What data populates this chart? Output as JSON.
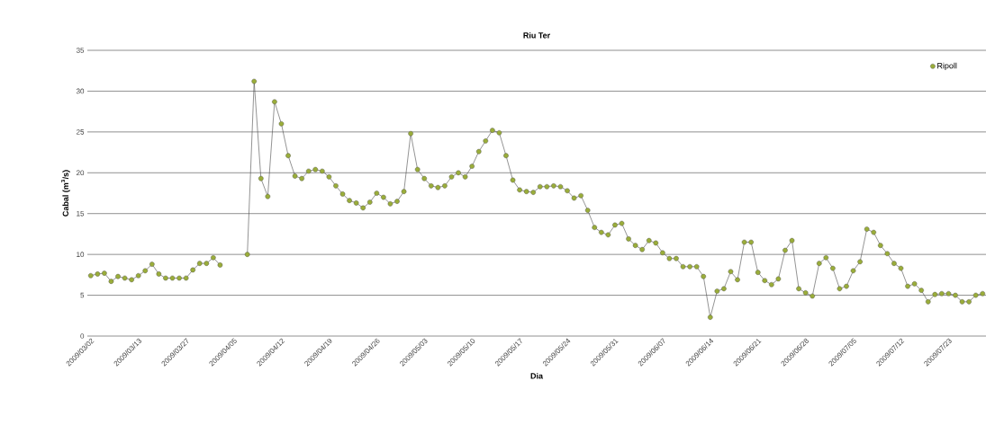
{
  "chart_data": {
    "type": "line",
    "title": "Riu Ter",
    "xlabel": "Dia",
    "ylabel": "Cabal (m$^{3}$/s)",
    "categories": [
      "2009/03/02",
      null,
      null,
      null,
      null,
      null,
      null,
      "2009/03/13",
      null,
      null,
      null,
      null,
      null,
      null,
      "2009/03/27",
      null,
      null,
      null,
      null,
      null,
      null,
      "2009/04/05",
      null,
      null,
      null,
      null,
      null,
      null,
      "2009/04/12",
      null,
      null,
      null,
      null,
      null,
      null,
      "2009/04/19",
      null,
      null,
      null,
      null,
      null,
      null,
      "2009/04/26",
      null,
      null,
      null,
      null,
      null,
      null,
      "2009/05/03",
      null,
      null,
      null,
      null,
      null,
      null,
      "2009/05/10",
      null,
      null,
      null,
      null,
      null,
      null,
      "2009/05/17",
      null,
      null,
      null,
      null,
      null,
      null,
      "2009/05/24",
      null,
      null,
      null,
      null,
      null,
      null,
      "2009/05/31",
      null,
      null,
      null,
      null,
      null,
      null,
      "2009/06/07",
      null,
      null,
      null,
      null,
      null,
      null,
      "2009/06/14",
      null,
      null,
      null,
      null,
      null,
      null,
      "2009/06/21",
      null,
      null,
      null,
      null,
      null,
      null,
      "2009/06/28",
      null,
      null,
      null,
      null,
      null,
      null,
      "2009/07/05",
      null,
      null,
      null,
      null,
      null,
      null,
      "2009/07/12",
      null,
      null,
      null,
      null,
      null,
      null,
      "2009/07/23",
      null,
      null,
      null,
      null,
      null
    ],
    "series": [
      {
        "name": "Ripoll",
        "color": "#9aad3a",
        "values": [
          7.4,
          7.6,
          7.7,
          6.7,
          7.3,
          7.1,
          6.9,
          7.4,
          8.0,
          8.8,
          7.6,
          7.1,
          7.1,
          7.1,
          7.1,
          8.1,
          8.9,
          8.9,
          9.6,
          8.7,
          null,
          null,
          null,
          10.0,
          31.2,
          19.3,
          17.1,
          28.7,
          26.0,
          22.1,
          19.6,
          19.3,
          20.2,
          20.4,
          20.2,
          19.5,
          18.4,
          17.4,
          16.6,
          16.3,
          15.7,
          16.4,
          17.5,
          17.0,
          16.2,
          16.5,
          17.7,
          24.8,
          20.4,
          19.3,
          18.4,
          18.2,
          18.4,
          19.5,
          20.0,
          19.5,
          20.8,
          22.6,
          23.9,
          25.2,
          24.9,
          22.1,
          19.1,
          17.9,
          17.7,
          17.6,
          18.3,
          18.3,
          18.4,
          18.3,
          17.8,
          16.9,
          17.2,
          15.4,
          13.3,
          12.7,
          12.4,
          13.6,
          13.8,
          11.9,
          11.1,
          10.6,
          11.7,
          11.4,
          10.2,
          9.5,
          9.5,
          8.5,
          8.5,
          8.5,
          7.3,
          2.3,
          5.5,
          5.8,
          7.9,
          6.9,
          11.5,
          11.5,
          7.8,
          6.8,
          6.3,
          7.0,
          10.5,
          11.7,
          5.8,
          5.3,
          4.9,
          8.9,
          9.6,
          8.3,
          5.8,
          6.1,
          8.0,
          9.1,
          13.1,
          12.7,
          11.1,
          10.1,
          8.9,
          8.3,
          6.1,
          6.4,
          5.6,
          4.2,
          5.1,
          5.2,
          5.2,
          5.0,
          4.2,
          4.2,
          5.0,
          5.2
        ]
      }
    ],
    "ylim": [
      0,
      35
    ],
    "yticks": [
      0,
      5,
      10,
      15,
      20,
      25,
      30,
      35
    ],
    "grid": "y",
    "legend": "top right",
    "marker": "circle",
    "line_style": "solid"
  }
}
